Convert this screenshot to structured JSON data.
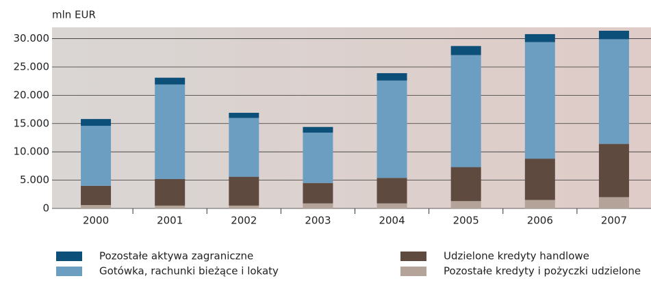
{
  "chart_data": {
    "type": "stacked_bar",
    "y_label": "mln EUR",
    "categories": [
      "2000",
      "2001",
      "2002",
      "2003",
      "2004",
      "2005",
      "2006",
      "2007"
    ],
    "series": [
      {
        "name": "Pozostałe kredyty i pożyczki udzielone",
        "color": "#b3a398",
        "values": [
          600,
          500,
          500,
          900,
          900,
          1300,
          1500,
          2000
        ]
      },
      {
        "name": "Udzielone kredyty handlowe",
        "color": "#5e4a3f",
        "values": [
          3400,
          4700,
          5100,
          3600,
          4500,
          6000,
          7300,
          9400
        ]
      },
      {
        "name": "Gotówka, rachunki bieżące i lokaty",
        "color": "#6c9ec1",
        "values": [
          10600,
          16700,
          10400,
          8900,
          17200,
          19800,
          20600,
          18500
        ]
      },
      {
        "name": "Pozostałe aktywa zagraniczne",
        "color": "#0c4f78",
        "values": [
          1200,
          1200,
          900,
          1000,
          1300,
          1600,
          1400,
          1500
        ]
      }
    ],
    "ylim": [
      0,
      32000
    ],
    "yticks": [
      0,
      {
        "value": 5000,
        "label": "5.000"
      },
      {
        "value": 10000,
        "label": "10.000"
      },
      {
        "value": 15000,
        "label": "15.000"
      },
      {
        "value": 20000,
        "label": "20.000"
      },
      {
        "value": 25000,
        "label": "25.000"
      },
      {
        "value": 30000,
        "label": "30.000"
      }
    ],
    "grid": true
  }
}
